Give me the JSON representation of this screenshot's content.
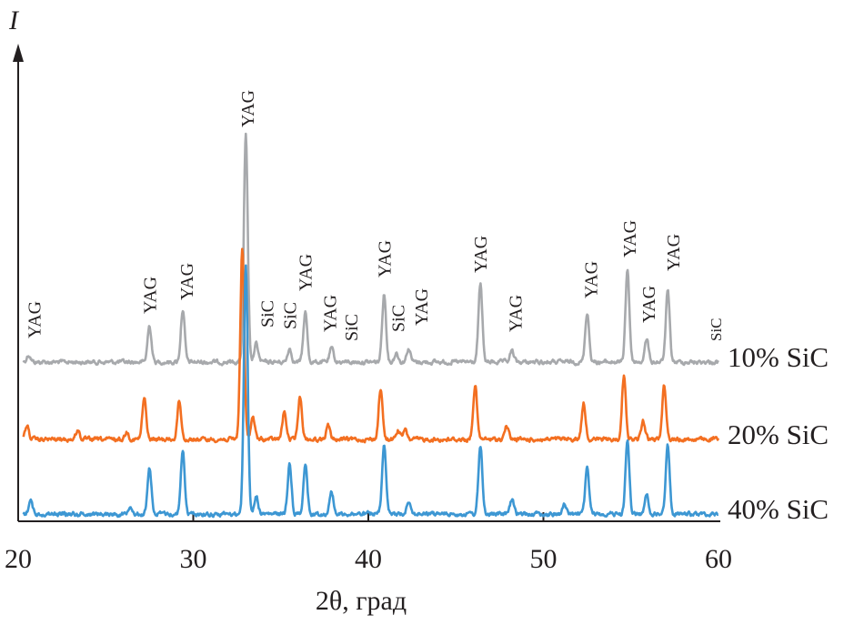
{
  "chart_data": {
    "type": "line",
    "title": "",
    "xlabel": "2θ, град",
    "ylabel": "I",
    "xlim": [
      20,
      60
    ],
    "xticks": [
      "20",
      "30",
      "40",
      "50",
      "60"
    ],
    "y_units": "arbitrary (offset curves)",
    "grid": false,
    "series": [
      {
        "name": "10% SiC",
        "color": "#a7a9ac",
        "offset": 0,
        "peaks": [
          [
            20.6,
            8
          ],
          [
            27.5,
            40
          ],
          [
            29.4,
            58
          ],
          [
            33.0,
            250
          ],
          [
            33.6,
            20
          ],
          [
            35.5,
            15
          ],
          [
            36.4,
            55
          ],
          [
            37.9,
            15
          ],
          [
            40.9,
            75
          ],
          [
            41.6,
            10
          ],
          [
            42.3,
            15
          ],
          [
            46.4,
            85
          ],
          [
            48.2,
            12
          ],
          [
            52.5,
            55
          ],
          [
            54.8,
            102
          ],
          [
            55.9,
            25
          ],
          [
            57.1,
            78
          ]
        ]
      },
      {
        "name": "20% SiC",
        "color": "#f36f21",
        "offset": -85,
        "peaks": [
          [
            20.5,
            15
          ],
          [
            23.4,
            10
          ],
          [
            26.2,
            8
          ],
          [
            27.2,
            45
          ],
          [
            29.2,
            42
          ],
          [
            32.8,
            210
          ],
          [
            33.4,
            25
          ],
          [
            35.2,
            30
          ],
          [
            36.1,
            48
          ],
          [
            37.7,
            15
          ],
          [
            40.7,
            55
          ],
          [
            41.7,
            10
          ],
          [
            42.1,
            10
          ],
          [
            46.1,
            60
          ],
          [
            47.9,
            15
          ],
          [
            52.3,
            40
          ],
          [
            54.6,
            70
          ],
          [
            55.7,
            20
          ],
          [
            56.9,
            60
          ]
        ]
      },
      {
        "name": "40% SiC",
        "color": "#3d97d3",
        "offset": -167,
        "peaks": [
          [
            20.7,
            15
          ],
          [
            26.4,
            10
          ],
          [
            27.5,
            50
          ],
          [
            29.4,
            70
          ],
          [
            33.0,
            275
          ],
          [
            33.6,
            20
          ],
          [
            35.5,
            55
          ],
          [
            36.4,
            55
          ],
          [
            37.9,
            25
          ],
          [
            40.9,
            75
          ],
          [
            42.3,
            15
          ],
          [
            46.4,
            75
          ],
          [
            48.2,
            15
          ],
          [
            51.2,
            10
          ],
          [
            52.5,
            50
          ],
          [
            54.8,
            80
          ],
          [
            55.9,
            20
          ],
          [
            57.1,
            75
          ]
        ]
      }
    ],
    "annotations": [
      {
        "text": "YAG",
        "x": 20.9
      },
      {
        "text": "YAG",
        "x": 27.5
      },
      {
        "text": "YAG",
        "x": 29.6
      },
      {
        "text": "YAG",
        "x": 33.1
      },
      {
        "text": "SiC",
        "x": 34.2
      },
      {
        "text": "SiC",
        "x": 35.5
      },
      {
        "text": "YAG",
        "x": 36.4
      },
      {
        "text": "YAG",
        "x": 37.8
      },
      {
        "text": "SiC",
        "x": 39.0
      },
      {
        "text": "YAG",
        "x": 40.9
      },
      {
        "text": "SiC",
        "x": 41.7
      },
      {
        "text": "YAG",
        "x": 43.0
      },
      {
        "text": "YAG",
        "x": 46.4
      },
      {
        "text": "YAG",
        "x": 48.4
      },
      {
        "text": "YAG",
        "x": 52.7
      },
      {
        "text": "YAG",
        "x": 54.9
      },
      {
        "text": "YAG",
        "x": 56.0
      },
      {
        "text": "YAG",
        "x": 57.4
      },
      {
        "text": "SiC",
        "x": 59.8
      }
    ]
  }
}
